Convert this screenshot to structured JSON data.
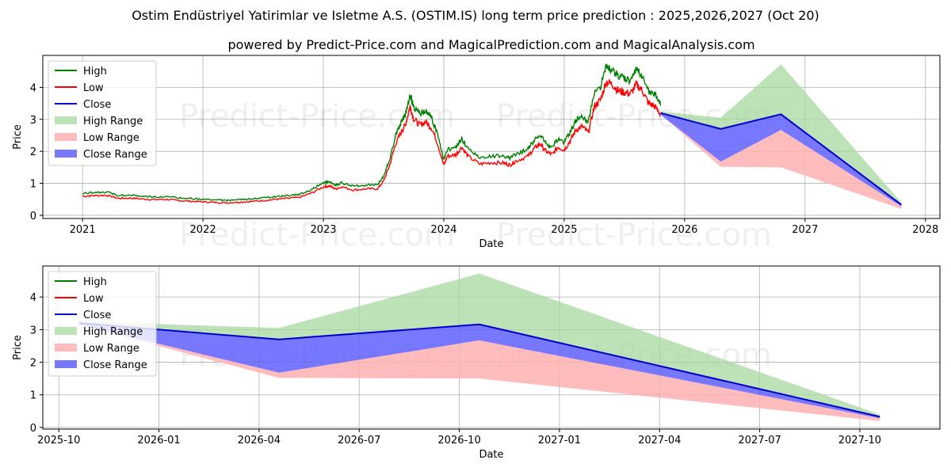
{
  "title": "Ostim Endüstriyel Yatirimlar ve Isletme A.S. (OSTIM.IS) long term price prediction : 2025,2026,2027 (Oct 20)",
  "subtitle": "powered by Predict-Price.com and MagicalPrediction.com and MagicalAnalysis.com",
  "watermark": "Predict-Price.com",
  "colors": {
    "high": "#008000",
    "low": "#ff0000",
    "close": "#0000cd",
    "high_range": "#a8d8a0",
    "low_range": "#ffb0b0",
    "close_range": "#6060ff"
  },
  "chart_data": [
    {
      "type": "line",
      "name": "full-history",
      "xlabel": "Date",
      "ylabel": "Price",
      "xlim": [
        2020.67,
        2028.12
      ],
      "ylim": [
        -0.1,
        5.0
      ],
      "x_ticks": [
        2021,
        2022,
        2023,
        2024,
        2025,
        2026,
        2027,
        2028
      ],
      "x_tick_labels": [
        "2021",
        "2022",
        "2023",
        "2024",
        "2025",
        "2026",
        "2027",
        "2028"
      ],
      "y_ticks": [
        0,
        1,
        2,
        3,
        4
      ],
      "y_tick_labels": [
        "0",
        "1",
        "2",
        "3",
        "4"
      ],
      "legend": [
        "High",
        "Low",
        "Close",
        "High Range",
        "Low Range",
        "Close Range"
      ],
      "legend_position": "upper-left",
      "history_close": [
        [
          2021.0,
          0.62
        ],
        [
          2021.1,
          0.64
        ],
        [
          2021.2,
          0.65
        ],
        [
          2021.3,
          0.55
        ],
        [
          2021.4,
          0.56
        ],
        [
          2021.5,
          0.53
        ],
        [
          2021.6,
          0.51
        ],
        [
          2021.7,
          0.52
        ],
        [
          2021.8,
          0.48
        ],
        [
          2021.9,
          0.46
        ],
        [
          2022.0,
          0.44
        ],
        [
          2022.1,
          0.42
        ],
        [
          2022.2,
          0.41
        ],
        [
          2022.3,
          0.43
        ],
        [
          2022.4,
          0.45
        ],
        [
          2022.5,
          0.48
        ],
        [
          2022.6,
          0.52
        ],
        [
          2022.7,
          0.55
        ],
        [
          2022.8,
          0.58
        ],
        [
          2022.9,
          0.72
        ],
        [
          2023.0,
          0.92
        ],
        [
          2023.05,
          0.95
        ],
        [
          2023.1,
          0.85
        ],
        [
          2023.15,
          0.92
        ],
        [
          2023.25,
          0.82
        ],
        [
          2023.35,
          0.85
        ],
        [
          2023.45,
          0.86
        ],
        [
          2023.5,
          1.1
        ],
        [
          2023.55,
          1.6
        ],
        [
          2023.6,
          2.3
        ],
        [
          2023.65,
          2.7
        ],
        [
          2023.68,
          2.9
        ],
        [
          2023.72,
          3.5
        ],
        [
          2023.75,
          3.1
        ],
        [
          2023.8,
          2.9
        ],
        [
          2023.85,
          3.0
        ],
        [
          2023.9,
          2.8
        ],
        [
          2023.95,
          2.3
        ],
        [
          2024.0,
          1.6
        ],
        [
          2024.03,
          1.9
        ],
        [
          2024.1,
          1.95
        ],
        [
          2024.15,
          2.2
        ],
        [
          2024.2,
          1.9
        ],
        [
          2024.3,
          1.65
        ],
        [
          2024.4,
          1.7
        ],
        [
          2024.5,
          1.68
        ],
        [
          2024.55,
          1.62
        ],
        [
          2024.6,
          1.75
        ],
        [
          2024.7,
          1.9
        ],
        [
          2024.75,
          2.15
        ],
        [
          2024.8,
          2.3
        ],
        [
          2024.85,
          2.05
        ],
        [
          2024.9,
          1.95
        ],
        [
          2024.95,
          2.2
        ],
        [
          2025.0,
          2.1
        ],
        [
          2025.05,
          2.4
        ],
        [
          2025.1,
          2.75
        ],
        [
          2025.15,
          2.85
        ],
        [
          2025.2,
          2.65
        ],
        [
          2025.25,
          3.5
        ],
        [
          2025.3,
          3.7
        ],
        [
          2025.35,
          4.3
        ],
        [
          2025.4,
          4.2
        ],
        [
          2025.45,
          4.0
        ],
        [
          2025.5,
          3.95
        ],
        [
          2025.55,
          3.9
        ],
        [
          2025.6,
          4.2
        ],
        [
          2025.65,
          4.0
        ],
        [
          2025.7,
          3.6
        ],
        [
          2025.75,
          3.5
        ],
        [
          2025.8,
          3.25
        ]
      ],
      "forecast_close": [
        [
          2025.8,
          3.2
        ],
        [
          2026.3,
          2.7
        ],
        [
          2026.8,
          3.16
        ],
        [
          2027.8,
          0.33
        ]
      ],
      "forecast_high": [
        [
          2025.8,
          3.25
        ],
        [
          2026.3,
          3.05
        ],
        [
          2026.8,
          4.72
        ],
        [
          2027.8,
          0.4
        ]
      ],
      "forecast_low": [
        [
          2025.8,
          3.15
        ],
        [
          2026.3,
          1.52
        ],
        [
          2026.8,
          1.5
        ],
        [
          2027.8,
          0.2
        ]
      ],
      "forecast_close_low": [
        [
          2025.8,
          3.15
        ],
        [
          2026.3,
          1.68
        ],
        [
          2026.8,
          2.67
        ],
        [
          2027.8,
          0.28
        ]
      ]
    },
    {
      "type": "line",
      "name": "forecast-zoom",
      "xlabel": "Date",
      "ylabel": "Price",
      "xlim": [
        2025.71,
        2027.95
      ],
      "ylim": [
        -0.05,
        4.95
      ],
      "x_ticks": [
        2025.75,
        2026.0,
        2026.25,
        2026.5,
        2026.75,
        2027.0,
        2027.25,
        2027.5,
        2027.75
      ],
      "x_tick_labels": [
        "2025-10",
        "2026-01",
        "2026-04",
        "2026-07",
        "2026-10",
        "2027-01",
        "2027-04",
        "2027-07",
        "2027-10"
      ],
      "y_ticks": [
        0,
        1,
        2,
        3,
        4
      ],
      "y_tick_labels": [
        "0",
        "1",
        "2",
        "3",
        "4"
      ],
      "legend": [
        "High",
        "Low",
        "Close",
        "High Range",
        "Low Range",
        "Close Range"
      ],
      "legend_position": "upper-left",
      "forecast_close": [
        [
          2025.8,
          3.2
        ],
        [
          2026.3,
          2.7
        ],
        [
          2026.8,
          3.16
        ],
        [
          2027.8,
          0.33
        ]
      ],
      "forecast_high": [
        [
          2025.8,
          3.25
        ],
        [
          2026.3,
          3.05
        ],
        [
          2026.8,
          4.72
        ],
        [
          2027.8,
          0.4
        ]
      ],
      "forecast_low": [
        [
          2025.8,
          3.15
        ],
        [
          2026.3,
          1.52
        ],
        [
          2026.8,
          1.5
        ],
        [
          2027.8,
          0.2
        ]
      ],
      "forecast_close_low": [
        [
          2025.8,
          3.15
        ],
        [
          2026.3,
          1.68
        ],
        [
          2026.8,
          2.67
        ],
        [
          2027.8,
          0.28
        ]
      ]
    }
  ]
}
